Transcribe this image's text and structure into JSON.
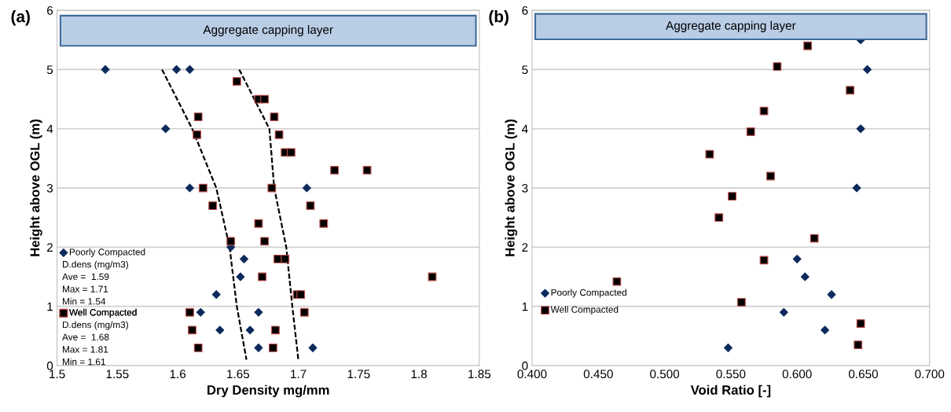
{
  "chart_data": [
    {
      "type": "scatter",
      "title": "(a)",
      "xlabel": "Dry Density mg/mm",
      "ylabel": "Height above OGL (m)",
      "xlim": [
        1.5,
        1.85
      ],
      "xticks": [
        1.5,
        1.55,
        1.6,
        1.65,
        1.7,
        1.75,
        1.8,
        1.85
      ],
      "ylim": [
        0,
        6
      ],
      "yticks": [
        0,
        1,
        2,
        3,
        4,
        5,
        6
      ],
      "grid": "y",
      "legend": "bottom left",
      "bands": [
        {
          "axis": "y",
          "from": 5.4,
          "to": 5.91,
          "label": "Aggregate capping layer",
          "color": "#b9cde5"
        }
      ],
      "annotations": [
        "D.dens (mg/m3)\nAve =  1.59\nMax = 1.71\nMin = 1.54",
        "D.dens (mg/m3)\nAve =  1.68\nMax = 1.81\nMin = 1.61"
      ],
      "series": [
        {
          "name": "Poorly Compacted",
          "marker": "diamond",
          "color": "#0d2a5c",
          "x": [
            1.54,
            1.599,
            1.61,
            1.59,
            1.61,
            1.707,
            1.644,
            1.655,
            1.652,
            1.632,
            1.619,
            1.667,
            1.635,
            1.66,
            1.667,
            1.712
          ],
          "values": [
            5.0,
            5.0,
            5.0,
            4.0,
            3.0,
            3.0,
            2.0,
            1.8,
            1.5,
            1.2,
            0.9,
            0.9,
            0.6,
            0.6,
            0.3,
            0.3
          ]
        },
        {
          "name": "Well Compacted",
          "marker": "square",
          "color": "#000000",
          "x": [
            1.649,
            1.667,
            1.672,
            1.617,
            1.68,
            1.616,
            1.684,
            1.689,
            1.694,
            1.73,
            1.757,
            1.621,
            1.678,
            1.629,
            1.71,
            1.667,
            1.721,
            1.644,
            1.672,
            1.683,
            1.689,
            1.67,
            1.811,
            1.699,
            1.702,
            1.61,
            1.705,
            1.612,
            1.681,
            1.617,
            1.679
          ],
          "values": [
            4.8,
            4.5,
            4.5,
            4.2,
            4.2,
            3.9,
            3.9,
            3.6,
            3.6,
            3.3,
            3.3,
            3.0,
            3.0,
            2.7,
            2.7,
            2.4,
            2.4,
            2.1,
            2.1,
            1.8,
            1.8,
            1.5,
            1.5,
            1.2,
            1.2,
            0.9,
            0.9,
            0.6,
            0.6,
            0.3,
            0.3
          ]
        },
        {
          "type": "line",
          "line_style": "dashed",
          "marker": "none",
          "color": "#000000",
          "x": [
            1.587,
            1.612,
            1.632,
            1.643,
            1.649,
            1.657
          ],
          "values": [
            5.0,
            4.0,
            3.0,
            2.0,
            1.0,
            0.1
          ]
        },
        {
          "type": "line",
          "line_style": "dashed",
          "marker": "none",
          "color": "#000000",
          "x": [
            1.651,
            1.676,
            1.68,
            1.69,
            1.695,
            1.7
          ],
          "values": [
            5.0,
            4.0,
            3.0,
            2.0,
            1.0,
            0.1
          ]
        }
      ]
    },
    {
      "type": "scatter",
      "title": "(b)",
      "xlabel": "Void Ratio [-]",
      "ylabel": "Height above OGL (m)",
      "xlim": [
        0.4,
        0.7
      ],
      "xticks": [
        {
          "value": 0.4,
          "label": "0.400"
        },
        {
          "value": 0.45,
          "label": "0.450"
        },
        {
          "value": 0.5,
          "label": "0.500"
        },
        {
          "value": 0.55,
          "label": "0.550"
        },
        {
          "value": 0.6,
          "label": "0.600"
        },
        {
          "value": 0.65,
          "label": "0.650"
        },
        {
          "value": 0.7,
          "label": "0.700"
        }
      ],
      "ylim": [
        0,
        6
      ],
      "yticks": [
        0,
        1,
        2,
        3,
        4,
        5,
        6
      ],
      "grid": "y",
      "legend": "bottom left",
      "bands": [
        {
          "axis": "y",
          "from": 5.51,
          "to": 5.94,
          "label": "Aggregate capping layer",
          "color": "#b9cde5"
        }
      ],
      "series": [
        {
          "name": "Poorly Compacted",
          "marker": "diamond",
          "color": "#0d2a5c",
          "x": [
            0.648,
            0.653,
            0.648,
            0.645,
            0.6,
            0.606,
            0.626,
            0.59,
            0.621,
            0.548
          ],
          "values": [
            5.5,
            5.0,
            4.0,
            3.0,
            1.8,
            1.5,
            1.2,
            0.9,
            0.6,
            0.3
          ]
        },
        {
          "name": "Well Compacted",
          "marker": "square",
          "color": "#000000",
          "x": [
            0.608,
            0.585,
            0.64,
            0.575,
            0.565,
            0.534,
            0.58,
            0.551,
            0.541,
            0.613,
            0.575,
            0.464,
            0.558,
            0.648,
            0.646
          ],
          "values": [
            5.4,
            5.05,
            4.65,
            4.3,
            3.95,
            3.57,
            3.2,
            2.86,
            2.5,
            2.15,
            1.78,
            1.42,
            1.07,
            0.71,
            0.35
          ]
        }
      ]
    }
  ]
}
